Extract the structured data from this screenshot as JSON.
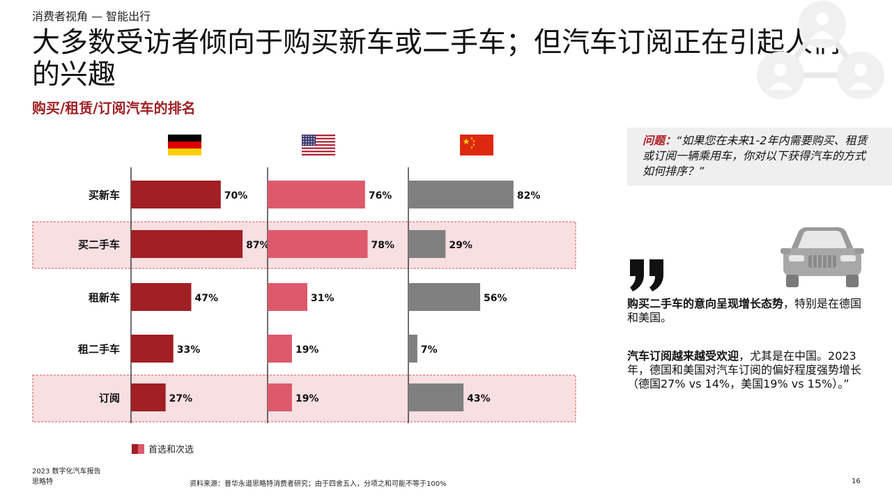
{
  "header": {
    "breadcrumb": "消费者视角 — 智能出行",
    "title": "大多数受访者倾向于购买新车或二手车；但汽车订阅正在引起人们的兴趣",
    "subtitle": "购买/租赁/订阅汽车的排名"
  },
  "chart_data": {
    "type": "bar",
    "orientation": "horizontal",
    "categories": [
      "买新车",
      "买二手车",
      "租新车",
      "租二手车",
      "订阅"
    ],
    "highlighted_categories": [
      "买二手车",
      "订阅"
    ],
    "series": [
      {
        "country": "Germany",
        "flag": "germany-flag-icon",
        "color": "#a02024",
        "values": [
          70,
          87,
          47,
          33,
          27
        ],
        "labels": [
          "70%",
          "87%",
          "47%",
          "33%",
          "27%"
        ]
      },
      {
        "country": "USA",
        "flag": "usa-flag-icon",
        "color": "#dc5a6c",
        "values": [
          76,
          78,
          31,
          19,
          19
        ],
        "labels": [
          "76%",
          "78%",
          "31%",
          "19%",
          "19%"
        ]
      },
      {
        "country": "China",
        "flag": "china-flag-icon",
        "color": "#808080",
        "values": [
          82,
          29,
          56,
          7,
          43
        ],
        "labels": [
          "82%",
          "29%",
          "56%",
          "7%",
          "43%"
        ]
      }
    ],
    "unit": "%",
    "xlim": [
      0,
      100
    ],
    "legend": {
      "label": "首选和次选",
      "position": "bottom-left"
    }
  },
  "question": {
    "label": "问题：",
    "text": "“如果您在未来1-2年内需要购买、租赁或订阅一辆乘用车，你对以下获得汽车的方式如何排序？”"
  },
  "insights": {
    "first_bold": "购买二手车的意向呈现增长态势",
    "first_rest": "，特别是在德国和美国。",
    "second_bold": "汽车订阅越来越受欢迎",
    "second_rest": "，尤其是在中国。2023年，德国和美国对汽车订阅的偏好程度强势增长（德国27% vs 14%，美国19% vs 15%）。”"
  },
  "footer": {
    "report_line1": "2023 数字化汽车报告",
    "report_line2": "思略特",
    "source": "资料来源：普华永道思略特消费者研究；由于四舍五入，分项之和可能不等于100%",
    "page_number": "16"
  },
  "colors": {
    "accent": "#a02024",
    "pink": "#dc5a6c",
    "highlight_bg": "#f8dfe2",
    "gray": "#808080"
  }
}
